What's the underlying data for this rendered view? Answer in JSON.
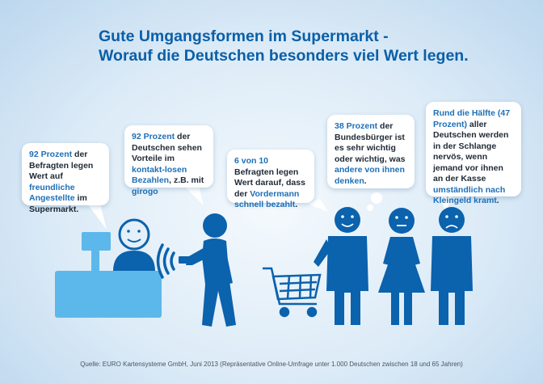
{
  "title": {
    "line1": "Gute Umgangsformen im Supermarkt -",
    "line2": "Worauf die Deutschen besonders viel Wert legen."
  },
  "bubbles": [
    {
      "parts": [
        {
          "t": "92 Prozent",
          "s": "hl"
        },
        {
          "t": " der Befragten legen Wert auf ",
          "s": "tx"
        },
        {
          "t": "freundliche Angestellte",
          "s": "hl"
        },
        {
          "t": " im Supermarkt.",
          "s": "tx"
        }
      ]
    },
    {
      "parts": [
        {
          "t": "92 Prozent",
          "s": "hl"
        },
        {
          "t": " der Deutschen sehen Vorteile im ",
          "s": "tx"
        },
        {
          "t": "kontakt-losen Bezahlen",
          "s": "hl"
        },
        {
          "t": ", z.B. mit ",
          "s": "tx"
        },
        {
          "t": "girogo",
          "s": "hl"
        }
      ]
    },
    {
      "parts": [
        {
          "t": "6 von 10",
          "s": "hl"
        },
        {
          "t": " Befragten legen Wert darauf, dass der ",
          "s": "tx"
        },
        {
          "t": "Vordermann schnell bezahlt",
          "s": "hl"
        },
        {
          "t": ".",
          "s": "tx"
        }
      ]
    },
    {
      "parts": [
        {
          "t": "38 Prozent",
          "s": "hl"
        },
        {
          "t": " der Bundesbürger ist es sehr wichtig oder wichtig, was ",
          "s": "tx"
        },
        {
          "t": "andere von ihnen denken",
          "s": "hl"
        },
        {
          "t": ".",
          "s": "tx"
        }
      ]
    },
    {
      "parts": [
        {
          "t": "Rund die Hälfte (47 Prozent)",
          "s": "hl"
        },
        {
          "t": " aller Deutschen werden in der Schlange nervös, wenn jemand vor ihnen an der Kasse ",
          "s": "tx"
        },
        {
          "t": "umständlich nach Kleingeld kramt",
          "s": "hl"
        },
        {
          "t": ".",
          "s": "tx"
        }
      ]
    }
  ],
  "source": "Quelle: EURO Kartensysteme GmbH, Juni 2013 (Repräsentative Online-Umfrage unter 1.000 Deutschen zwischen 18 und 65 Jahren)",
  "colors": {
    "figure": "#0b62ad",
    "counter": "#5cb8ea",
    "accent": "#1d6fb8",
    "title": "#0a5fa8"
  }
}
